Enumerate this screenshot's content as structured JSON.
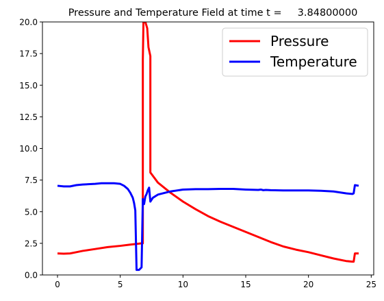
{
  "chart_data": {
    "type": "line",
    "title": "Pressure and Temperature Field at time t =     3.84800000",
    "xlabel": "",
    "ylabel": "",
    "xlim": [
      -1.2,
      25.2
    ],
    "ylim": [
      0,
      20
    ],
    "xticks": [
      0,
      5,
      10,
      15,
      20,
      25
    ],
    "xtick_labels": [
      "0",
      "5",
      "10",
      "15",
      "20",
      "25"
    ],
    "yticks": [
      0,
      2.5,
      5,
      7.5,
      10,
      12.5,
      15,
      17.5,
      20
    ],
    "ytick_labels": [
      "0.0",
      "2.5",
      "5.0",
      "7.5",
      "10.0",
      "12.5",
      "15.0",
      "17.5",
      "20.0"
    ],
    "grid": false,
    "legend_position": "top-right",
    "series": [
      {
        "name": "Pressure",
        "color": "#ff0000",
        "x": [
          0,
          0.5,
          1.0,
          1.5,
          2.0,
          3.0,
          4.0,
          5.0,
          5.8,
          6.3,
          6.7,
          6.8,
          6.8,
          6.85,
          7.0,
          7.15,
          7.25,
          7.4,
          7.4,
          8.0,
          9.0,
          10.0,
          11.0,
          12.0,
          13.0,
          14.0,
          15.0,
          16.0,
          17.0,
          18.0,
          19.0,
          20.0,
          21.0,
          22.0,
          23.0,
          23.5,
          23.6,
          23.7,
          24.0
        ],
        "y": [
          1.7,
          1.68,
          1.7,
          1.8,
          1.9,
          2.05,
          2.2,
          2.3,
          2.4,
          2.45,
          2.5,
          2.5,
          17.0,
          20.0,
          20.0,
          19.5,
          18.0,
          17.3,
          8.1,
          7.3,
          6.5,
          5.8,
          5.2,
          4.65,
          4.2,
          3.8,
          3.4,
          3.0,
          2.6,
          2.25,
          2.0,
          1.8,
          1.55,
          1.3,
          1.1,
          1.05,
          1.05,
          1.7,
          1.7
        ]
      },
      {
        "name": "Temperature",
        "color": "#0000ff",
        "x": [
          0,
          0.5,
          1.0,
          1.5,
          2.0,
          3.0,
          3.5,
          4.0,
          4.5,
          5.0,
          5.3,
          5.6,
          5.8,
          6.0,
          6.1,
          6.2,
          6.3,
          6.5,
          6.7,
          6.8,
          6.9,
          7.0,
          7.1,
          7.2,
          7.3,
          7.4,
          7.4,
          7.6,
          8.0,
          9.0,
          10.0,
          11.0,
          12.0,
          13.0,
          14.0,
          15.0,
          16.0,
          16.2,
          16.4,
          16.6,
          17.0,
          18.0,
          19.0,
          20.0,
          21.0,
          22.0,
          23.0,
          23.5,
          23.6,
          23.7,
          24.0
        ],
        "y": [
          7.05,
          7.0,
          7.0,
          7.1,
          7.15,
          7.2,
          7.25,
          7.25,
          7.25,
          7.2,
          7.05,
          6.8,
          6.5,
          6.1,
          5.7,
          5.1,
          0.4,
          0.4,
          0.6,
          6.0,
          5.6,
          6.2,
          6.4,
          6.7,
          6.9,
          5.8,
          5.8,
          6.1,
          6.35,
          6.6,
          6.75,
          6.78,
          6.78,
          6.8,
          6.8,
          6.75,
          6.72,
          6.75,
          6.7,
          6.72,
          6.7,
          6.68,
          6.68,
          6.68,
          6.65,
          6.6,
          6.45,
          6.4,
          6.45,
          7.1,
          7.05
        ]
      }
    ]
  }
}
